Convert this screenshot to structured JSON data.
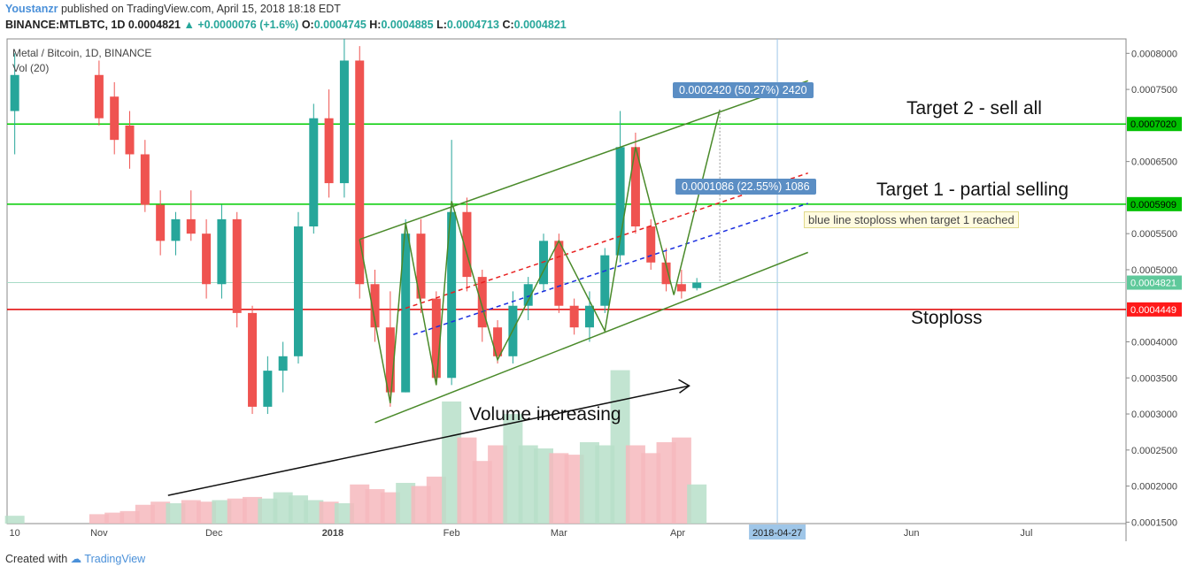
{
  "header": {
    "author": "Youstanzr",
    "published": "published on TradingView.com, April 15, 2018 18:18 EDT"
  },
  "quote": {
    "symbol": "BINANCE:MTLBTC, 1D",
    "last": "0.0004821",
    "change": "+0.0000076 (+1.6%)",
    "o_label": "O:",
    "o": "0.0004745",
    "h_label": "H:",
    "h": "0.0004885",
    "l_label": "L:",
    "l": "0.0004713",
    "c_label": "C:",
    "c": "0.0004821"
  },
  "legend": {
    "title": "Metal / Bitcoin, 1D, BINANCE",
    "volume": "Vol (20)"
  },
  "annotations": {
    "target2": "Target 2 - sell all",
    "target1": "Target 1 - partial selling",
    "stoploss": "Stoploss",
    "volume": "Volume increasing",
    "measure_big": "0.0002420 (50.27%) 2420",
    "measure_small": "0.0001086 (22.55%) 1086",
    "blue_note": "blue line stoploss when target 1 reached"
  },
  "footer": {
    "created": "Created with",
    "brand": "TradingView"
  },
  "colors": {
    "up": "#26a69a",
    "down": "#ef5350",
    "green_line": "#00cc00",
    "red_line": "#e00000",
    "channel": "#4a8a2a",
    "blue_dash": "#1a2ee0",
    "red_dash": "#e82020",
    "badge_green": "#00c000",
    "badge_red": "#ff1a1a",
    "badge_last": "#5fc99b"
  },
  "chart_data": {
    "type": "candlestick",
    "ylim": [
      0.000148,
      0.00082
    ],
    "y_ticks": [
      "0.0008000",
      "0.0007500",
      "0.0007020",
      "0.0006500",
      "0.0005909",
      "0.0005500",
      "0.0005000",
      "0.0004821",
      "0.0004449",
      "0.0004000",
      "0.0003500",
      "0.0003000",
      "0.0002500",
      "0.0002000",
      "0.0001500"
    ],
    "x_ticks": [
      "10",
      "Nov",
      "Dec",
      "2018",
      "Feb",
      "Mar",
      "Apr",
      "2018-04-27",
      "Jun",
      "Jul"
    ],
    "x_tick_days": [
      0,
      22,
      52,
      83,
      114,
      142,
      173,
      199,
      234,
      264
    ],
    "levels": [
      {
        "name": "target2",
        "value": 0.000702,
        "label": "0.0007020"
      },
      {
        "name": "target1",
        "value": 0.0005909,
        "label": "0.0005909"
      },
      {
        "name": "stoploss",
        "value": 0.0004449,
        "label": "0.0004449"
      },
      {
        "name": "last",
        "value": 0.0004821,
        "label": "0.0004821"
      }
    ],
    "candles": [
      {
        "d": 0,
        "o": 0.00072,
        "h": 0.0008,
        "l": 0.00066,
        "c": 0.00077
      },
      {
        "d": 22,
        "o": 0.00077,
        "h": 0.00079,
        "l": 0.0007,
        "c": 0.00071
      },
      {
        "d": 26,
        "o": 0.00074,
        "h": 0.00076,
        "l": 0.00066,
        "c": 0.00068
      },
      {
        "d": 30,
        "o": 0.0007,
        "h": 0.00072,
        "l": 0.00064,
        "c": 0.00066
      },
      {
        "d": 34,
        "o": 0.00066,
        "h": 0.00068,
        "l": 0.00058,
        "c": 0.00059
      },
      {
        "d": 38,
        "o": 0.00059,
        "h": 0.00061,
        "l": 0.00052,
        "c": 0.00054
      },
      {
        "d": 42,
        "o": 0.00054,
        "h": 0.00058,
        "l": 0.00052,
        "c": 0.00057
      },
      {
        "d": 46,
        "o": 0.00057,
        "h": 0.00061,
        "l": 0.00054,
        "c": 0.00055
      },
      {
        "d": 50,
        "o": 0.00055,
        "h": 0.00057,
        "l": 0.00046,
        "c": 0.00048
      },
      {
        "d": 54,
        "o": 0.00048,
        "h": 0.00059,
        "l": 0.00046,
        "c": 0.00057
      },
      {
        "d": 58,
        "o": 0.00057,
        "h": 0.00058,
        "l": 0.00042,
        "c": 0.00044
      },
      {
        "d": 62,
        "o": 0.00044,
        "h": 0.00045,
        "l": 0.0003,
        "c": 0.00031
      },
      {
        "d": 66,
        "o": 0.00031,
        "h": 0.00038,
        "l": 0.0003,
        "c": 0.00036
      },
      {
        "d": 70,
        "o": 0.00036,
        "h": 0.0004,
        "l": 0.00033,
        "c": 0.00038
      },
      {
        "d": 74,
        "o": 0.00038,
        "h": 0.00058,
        "l": 0.00037,
        "c": 0.00056
      },
      {
        "d": 78,
        "o": 0.00056,
        "h": 0.00073,
        "l": 0.00055,
        "c": 0.00071
      },
      {
        "d": 82,
        "o": 0.00071,
        "h": 0.00075,
        "l": 0.0006,
        "c": 0.00062
      },
      {
        "d": 86,
        "o": 0.00062,
        "h": 0.00082,
        "l": 0.0006,
        "c": 0.00079
      },
      {
        "d": 90,
        "o": 0.00079,
        "h": 0.00081,
        "l": 0.00046,
        "c": 0.00048
      },
      {
        "d": 94,
        "o": 0.00048,
        "h": 0.0005,
        "l": 0.0004,
        "c": 0.00042
      },
      {
        "d": 98,
        "o": 0.00042,
        "h": 0.00047,
        "l": 0.00031,
        "c": 0.00033
      },
      {
        "d": 102,
        "o": 0.00033,
        "h": 0.00057,
        "l": 0.00033,
        "c": 0.00055
      },
      {
        "d": 106,
        "o": 0.00055,
        "h": 0.00057,
        "l": 0.00044,
        "c": 0.00046
      },
      {
        "d": 110,
        "o": 0.00046,
        "h": 0.00047,
        "l": 0.00034,
        "c": 0.00035
      },
      {
        "d": 114,
        "o": 0.00035,
        "h": 0.00068,
        "l": 0.00034,
        "c": 0.00058
      },
      {
        "d": 118,
        "o": 0.00058,
        "h": 0.0006,
        "l": 0.00047,
        "c": 0.00049
      },
      {
        "d": 122,
        "o": 0.00049,
        "h": 0.0005,
        "l": 0.0004,
        "c": 0.00042
      },
      {
        "d": 126,
        "o": 0.00042,
        "h": 0.00043,
        "l": 0.00037,
        "c": 0.00038
      },
      {
        "d": 130,
        "o": 0.00038,
        "h": 0.00047,
        "l": 0.00037,
        "c": 0.00045
      },
      {
        "d": 134,
        "o": 0.00045,
        "h": 0.00049,
        "l": 0.00043,
        "c": 0.00048
      },
      {
        "d": 138,
        "o": 0.00048,
        "h": 0.00055,
        "l": 0.00047,
        "c": 0.00054
      },
      {
        "d": 142,
        "o": 0.00054,
        "h": 0.00055,
        "l": 0.00044,
        "c": 0.00045
      },
      {
        "d": 146,
        "o": 0.00045,
        "h": 0.00046,
        "l": 0.00041,
        "c": 0.00042
      },
      {
        "d": 150,
        "o": 0.00042,
        "h": 0.00047,
        "l": 0.0004,
        "c": 0.00045
      },
      {
        "d": 154,
        "o": 0.00045,
        "h": 0.00053,
        "l": 0.00044,
        "c": 0.00052
      },
      {
        "d": 158,
        "o": 0.00052,
        "h": 0.00072,
        "l": 0.00051,
        "c": 0.00067
      },
      {
        "d": 162,
        "o": 0.00067,
        "h": 0.00069,
        "l": 0.00055,
        "c": 0.00056
      },
      {
        "d": 166,
        "o": 0.00056,
        "h": 0.00057,
        "l": 0.0005,
        "c": 0.00051
      },
      {
        "d": 170,
        "o": 0.00051,
        "h": 0.00053,
        "l": 0.00047,
        "c": 0.00048
      },
      {
        "d": 174,
        "o": 0.00048,
        "h": 0.0005,
        "l": 0.00046,
        "c": 0.00047
      },
      {
        "d": 178,
        "o": 0.0004745,
        "h": 0.0004885,
        "l": 0.0004713,
        "c": 0.0004821
      }
    ],
    "volume_note": "Vol (20) bars increase toward April",
    "volume": [
      {
        "d": 0,
        "v": 0.05
      },
      {
        "d": 22,
        "v": 0.06
      },
      {
        "d": 26,
        "v": 0.07
      },
      {
        "d": 30,
        "v": 0.08
      },
      {
        "d": 34,
        "v": 0.12
      },
      {
        "d": 38,
        "v": 0.14
      },
      {
        "d": 42,
        "v": 0.13
      },
      {
        "d": 46,
        "v": 0.15
      },
      {
        "d": 50,
        "v": 0.14
      },
      {
        "d": 54,
        "v": 0.15
      },
      {
        "d": 58,
        "v": 0.16
      },
      {
        "d": 62,
        "v": 0.17
      },
      {
        "d": 66,
        "v": 0.16
      },
      {
        "d": 70,
        "v": 0.2
      },
      {
        "d": 74,
        "v": 0.18
      },
      {
        "d": 78,
        "v": 0.15
      },
      {
        "d": 82,
        "v": 0.14
      },
      {
        "d": 86,
        "v": 0.13
      },
      {
        "d": 90,
        "v": 0.25
      },
      {
        "d": 94,
        "v": 0.22
      },
      {
        "d": 98,
        "v": 0.2
      },
      {
        "d": 102,
        "v": 0.26
      },
      {
        "d": 106,
        "v": 0.24
      },
      {
        "d": 110,
        "v": 0.3
      },
      {
        "d": 114,
        "v": 0.78
      },
      {
        "d": 118,
        "v": 0.55
      },
      {
        "d": 122,
        "v": 0.4
      },
      {
        "d": 126,
        "v": 0.5
      },
      {
        "d": 130,
        "v": 0.7
      },
      {
        "d": 134,
        "v": 0.5
      },
      {
        "d": 138,
        "v": 0.48
      },
      {
        "d": 142,
        "v": 0.45
      },
      {
        "d": 146,
        "v": 0.44
      },
      {
        "d": 150,
        "v": 0.52
      },
      {
        "d": 154,
        "v": 0.5
      },
      {
        "d": 158,
        "v": 0.98
      },
      {
        "d": 162,
        "v": 0.5
      },
      {
        "d": 166,
        "v": 0.45
      },
      {
        "d": 170,
        "v": 0.52
      },
      {
        "d": 174,
        "v": 0.55
      },
      {
        "d": 178,
        "v": 0.25
      }
    ],
    "channel_upper": [
      [
        90,
        0.000542
      ],
      [
        207,
        0.000762
      ]
    ],
    "channel_lower": [
      [
        94,
        0.000288
      ],
      [
        207,
        0.000524
      ]
    ],
    "red_dash": [
      [
        100,
        0.000443
      ],
      [
        207,
        0.000634
      ]
    ],
    "blue_dash": [
      [
        104,
        0.00041
      ],
      [
        207,
        0.000592
      ]
    ],
    "zigzag": [
      [
        90,
        0.000542
      ],
      [
        98,
        0.000315
      ],
      [
        102,
        0.000565
      ],
      [
        110,
        0.00034
      ],
      [
        114,
        0.000595
      ],
      [
        126,
        0.000375
      ],
      [
        142,
        0.00054
      ],
      [
        154,
        0.000415
      ],
      [
        162,
        0.00067
      ],
      [
        172,
        0.000465
      ],
      [
        184,
        0.000722
      ]
    ],
    "volume_arrow": [
      [
        40,
        0.18
      ],
      [
        176,
        0.88
      ]
    ]
  }
}
